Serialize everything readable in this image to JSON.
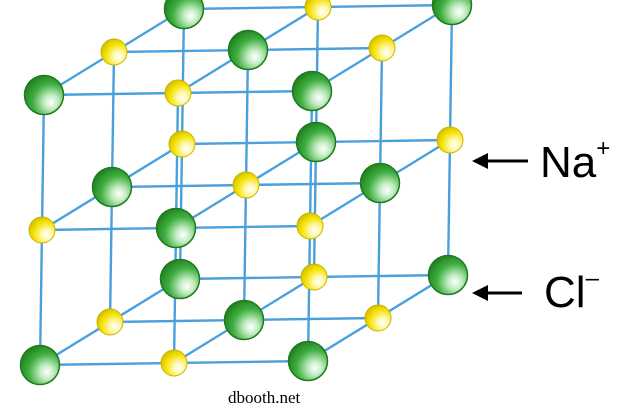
{
  "labels": {
    "sodium": {
      "symbol": "Na",
      "charge": "+"
    },
    "chloride": {
      "symbol": "Cl",
      "charge": "–"
    }
  },
  "credit": "dbooth.net",
  "colors": {
    "edge": "#4aa0dd",
    "chloride_fill": "#2d9a2d",
    "sodium_fill": "#f2e400",
    "arrow": "#000000"
  }
}
